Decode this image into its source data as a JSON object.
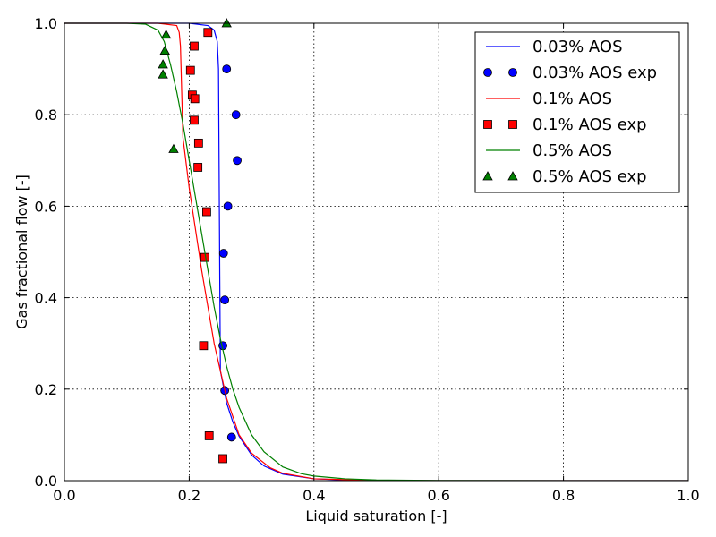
{
  "chart_data": {
    "type": "line",
    "xlabel": "Liquid saturation [-]",
    "ylabel": "Gas fractional flow [-]",
    "xlim": [
      0.0,
      1.0
    ],
    "ylim": [
      0.0,
      1.0
    ],
    "xticks": [
      "0.0",
      "0.2",
      "0.4",
      "0.6",
      "0.8",
      "1.0"
    ],
    "yticks": [
      "0.0",
      "0.2",
      "0.4",
      "0.6",
      "0.8",
      "1.0"
    ],
    "grid": true,
    "legend_position": "top-right",
    "series": [
      {
        "name": "0.03% AOS",
        "kind": "line",
        "color": "#0000ff",
        "x": [
          0.0,
          0.16,
          0.2,
          0.23,
          0.24,
          0.245,
          0.247,
          0.249,
          0.25,
          0.26,
          0.27,
          0.28,
          0.3,
          0.32,
          0.35,
          0.4,
          0.45,
          0.5,
          0.6,
          0.8,
          1.0
        ],
        "y": [
          1.0,
          1.0,
          1.0,
          0.995,
          0.985,
          0.96,
          0.9,
          0.45,
          0.24,
          0.17,
          0.128,
          0.097,
          0.056,
          0.032,
          0.014,
          0.004,
          0.0015,
          0.0005,
          0.0001,
          0.0,
          0.0
        ]
      },
      {
        "name": "0.03% AOS exp",
        "kind": "scatter",
        "marker": "circle",
        "color": "#0000ff",
        "x": [
          0.26,
          0.275,
          0.277,
          0.262,
          0.255,
          0.257,
          0.254,
          0.257,
          0.268
        ],
        "y": [
          0.9,
          0.8,
          0.7,
          0.6,
          0.497,
          0.395,
          0.295,
          0.197,
          0.095
        ]
      },
      {
        "name": "0.1% AOS",
        "kind": "line",
        "color": "#ff0000",
        "x": [
          0.0,
          0.15,
          0.18,
          0.184,
          0.186,
          0.188,
          0.19,
          0.2,
          0.21,
          0.22,
          0.23,
          0.24,
          0.25,
          0.26,
          0.28,
          0.3,
          0.33,
          0.35,
          0.4,
          0.5,
          0.6,
          0.8,
          1.0
        ],
        "y": [
          1.0,
          1.0,
          0.995,
          0.98,
          0.95,
          0.85,
          0.75,
          0.64,
          0.55,
          0.46,
          0.38,
          0.3,
          0.24,
          0.18,
          0.1,
          0.06,
          0.028,
          0.016,
          0.004,
          0.0005,
          0.0001,
          0.0,
          0.0
        ]
      },
      {
        "name": "0.1% AOS exp",
        "kind": "scatter",
        "marker": "square",
        "color": "#ff0000",
        "x": [
          0.23,
          0.208,
          0.202,
          0.205,
          0.209,
          0.208,
          0.215,
          0.214,
          0.228,
          0.225,
          0.223,
          0.232,
          0.254
        ],
        "y": [
          0.98,
          0.95,
          0.897,
          0.843,
          0.835,
          0.788,
          0.738,
          0.685,
          0.588,
          0.488,
          0.295,
          0.098,
          0.048
        ]
      },
      {
        "name": "0.5% AOS",
        "kind": "line",
        "color": "#008000",
        "x": [
          0.0,
          0.1,
          0.13,
          0.15,
          0.16,
          0.17,
          0.18,
          0.19,
          0.2,
          0.21,
          0.22,
          0.23,
          0.24,
          0.25,
          0.26,
          0.27,
          0.28,
          0.3,
          0.32,
          0.35,
          0.38,
          0.4,
          0.45,
          0.5,
          0.6,
          0.8,
          1.0
        ],
        "y": [
          1.0,
          1.0,
          0.998,
          0.985,
          0.96,
          0.91,
          0.85,
          0.78,
          0.7,
          0.62,
          0.54,
          0.46,
          0.38,
          0.31,
          0.25,
          0.2,
          0.16,
          0.1,
          0.063,
          0.03,
          0.015,
          0.01,
          0.004,
          0.0015,
          0.0003,
          0.0,
          0.0
        ]
      },
      {
        "name": "0.5% AOS exp",
        "kind": "scatter",
        "marker": "triangle",
        "color": "#008000",
        "x": [
          0.26,
          0.163,
          0.161,
          0.158,
          0.158,
          0.175
        ],
        "y": [
          1.0,
          0.975,
          0.94,
          0.91,
          0.888,
          0.725
        ]
      }
    ]
  }
}
